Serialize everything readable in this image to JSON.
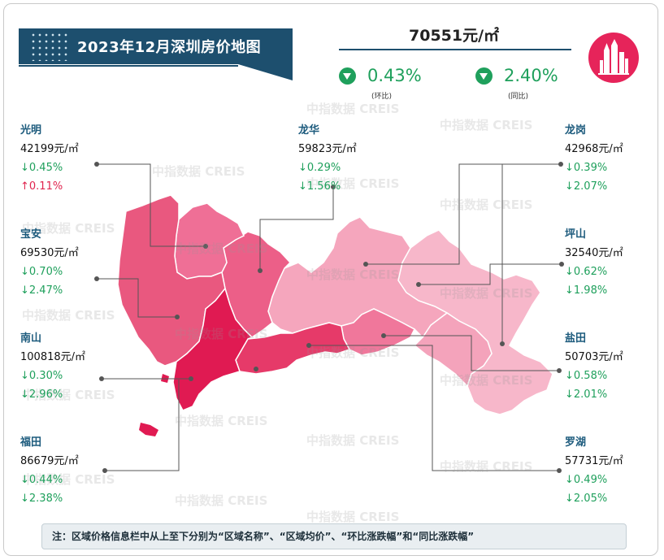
{
  "title": "2023年12月深圳房价地图",
  "city": {
    "price": "70551元/㎡",
    "mom_value": "0.43%",
    "mom_label": "(环比)",
    "yoy_value": "2.40%",
    "yoy_label": "(同比)",
    "direction": "down"
  },
  "watermark": "中指数据 CREIS",
  "districts": [
    {
      "id": "guangming",
      "name": "光明",
      "price": "42199元/㎡",
      "mom": "↓0.45%",
      "yoy": "↑0.11%",
      "mom_dir": "down",
      "yoy_dir": "up",
      "color": "#ef6f96"
    },
    {
      "id": "baoan",
      "name": "宝安",
      "price": "69530元/㎡",
      "mom": "↓0.70%",
      "yoy": "↓2.47%",
      "mom_dir": "down",
      "yoy_dir": "down",
      "color": "#e9587f"
    },
    {
      "id": "nanshan",
      "name": "南山",
      "price": "100818元/㎡",
      "mom": "↓0.30%",
      "yoy": "↓2.96%",
      "mom_dir": "down",
      "yoy_dir": "down",
      "color": "#e01a52"
    },
    {
      "id": "futian",
      "name": "福田",
      "price": "86679元/㎡",
      "mom": "↓0.44%",
      "yoy": "↓2.38%",
      "mom_dir": "down",
      "yoy_dir": "down",
      "color": "#e63a69"
    },
    {
      "id": "longhua",
      "name": "龙华",
      "price": "59823元/㎡",
      "mom": "↓0.29%",
      "yoy": "↓1.56%",
      "mom_dir": "down",
      "yoy_dir": "down",
      "color": "#ec5f88"
    },
    {
      "id": "longgang",
      "name": "龙岗",
      "price": "42968元/㎡",
      "mom": "↓0.39%",
      "yoy": "↓2.07%",
      "mom_dir": "down",
      "yoy_dir": "down",
      "color": "#f5a6bd"
    },
    {
      "id": "pingshan",
      "name": "坪山",
      "price": "32540元/㎡",
      "mom": "↓0.62%",
      "yoy": "↓1.98%",
      "mom_dir": "down",
      "yoy_dir": "down",
      "color": "#f7b7ca"
    },
    {
      "id": "yantian",
      "name": "盐田",
      "price": "50703元/㎡",
      "mom": "↓0.58%",
      "yoy": "↓2.01%",
      "mom_dir": "down",
      "yoy_dir": "down",
      "color": "#f4a3bb"
    },
    {
      "id": "luohu",
      "name": "罗湖",
      "price": "57731元/㎡",
      "mom": "↓0.49%",
      "yoy": "↓2.05%",
      "mom_dir": "down",
      "yoy_dir": "down",
      "color": "#f0779b"
    }
  ],
  "note": "注：区域价格信息栏中从上至下分别为“区域名称”、“区域均价”、“环比涨跌幅”和“同比涨跌幅”"
}
